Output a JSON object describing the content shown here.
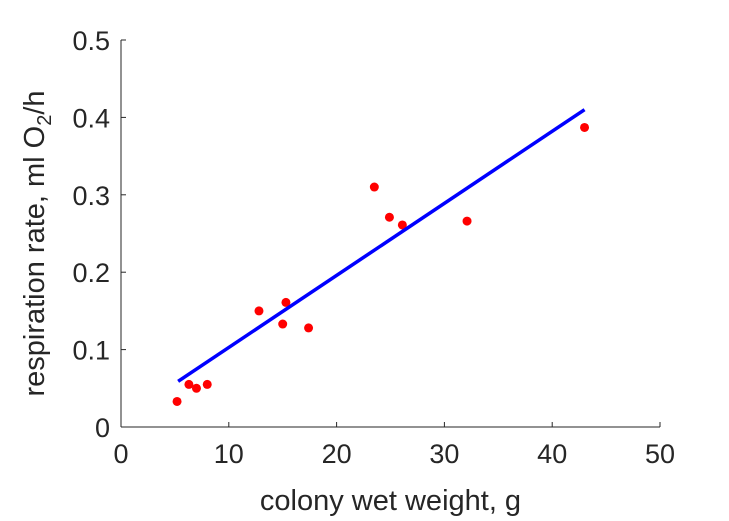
{
  "chart_data": {
    "type": "scatter",
    "xlabel": "colony wet weight, g",
    "ylabel": "respiration rate, ml O",
    "ylabel_subscript": "2",
    "ylabel_suffix": "/h",
    "xlim": [
      0,
      50
    ],
    "ylim": [
      0,
      0.5
    ],
    "x_ticks": [
      "0",
      "10",
      "20",
      "30",
      "40",
      "50"
    ],
    "y_ticks": [
      "0",
      "0.1",
      "0.2",
      "0.3",
      "0.4",
      "0.5"
    ],
    "grid": false,
    "series": [
      {
        "type": "scatter",
        "color": "#ff0000",
        "points": [
          {
            "x": 5.2,
            "y": 0.033
          },
          {
            "x": 6.3,
            "y": 0.055
          },
          {
            "x": 7.0,
            "y": 0.05
          },
          {
            "x": 8.0,
            "y": 0.055
          },
          {
            "x": 12.8,
            "y": 0.15
          },
          {
            "x": 15.0,
            "y": 0.133
          },
          {
            "x": 15.3,
            "y": 0.161
          },
          {
            "x": 17.4,
            "y": 0.128
          },
          {
            "x": 23.5,
            "y": 0.31
          },
          {
            "x": 24.9,
            "y": 0.271
          },
          {
            "x": 26.1,
            "y": 0.261
          },
          {
            "x": 32.1,
            "y": 0.266
          },
          {
            "x": 43.0,
            "y": 0.387
          }
        ]
      },
      {
        "type": "line",
        "color": "#0000ff",
        "points": [
          {
            "x": 5.3,
            "y": 0.059
          },
          {
            "x": 43.0,
            "y": 0.41
          }
        ]
      }
    ]
  }
}
